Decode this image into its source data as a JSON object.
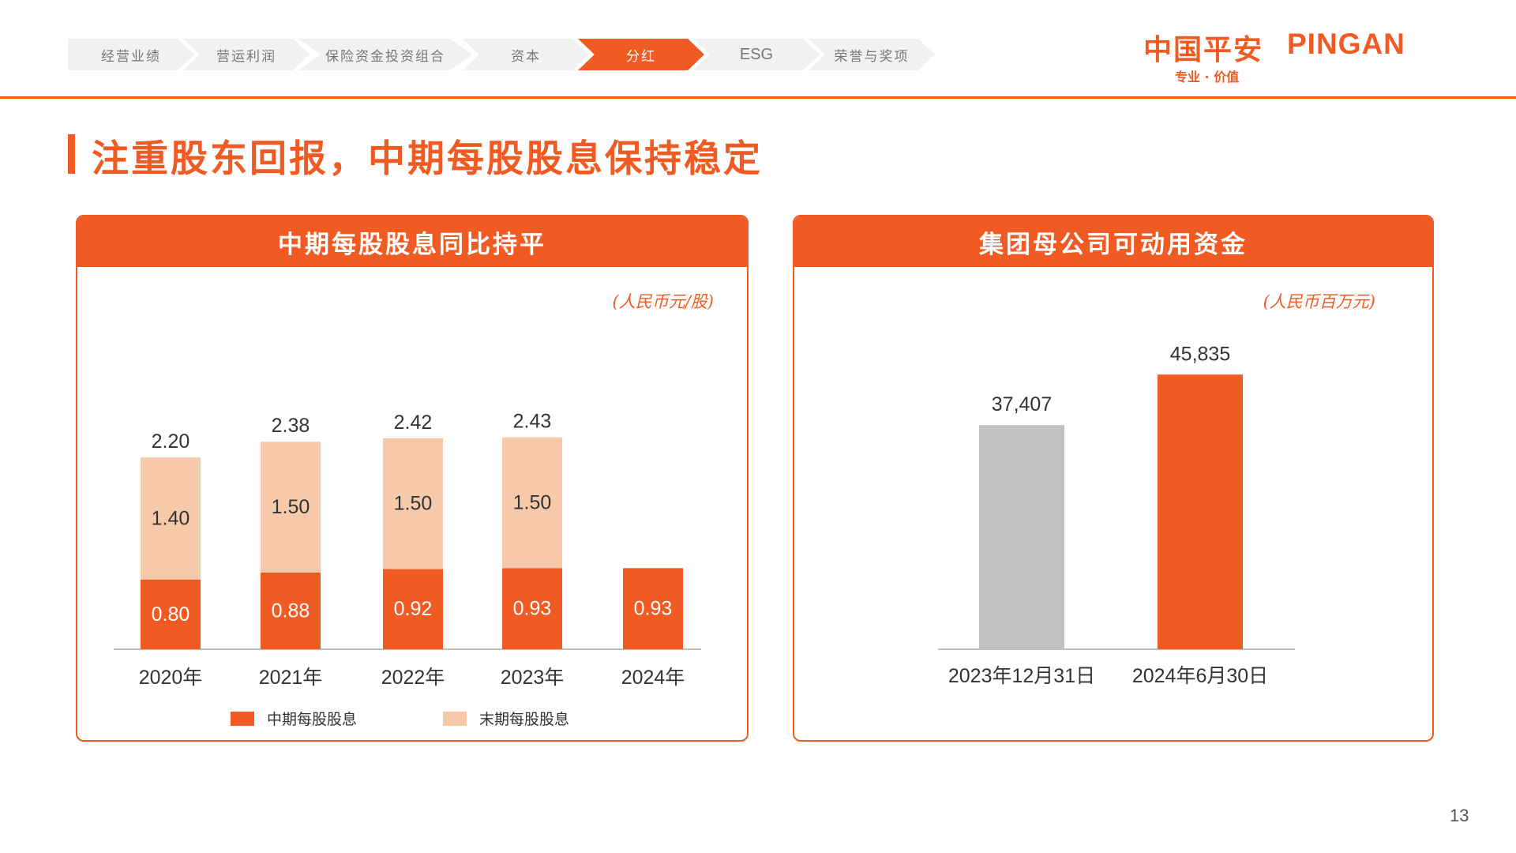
{
  "nav": {
    "items": [
      {
        "label": "经营业绩",
        "active": false
      },
      {
        "label": "营运利润",
        "active": false
      },
      {
        "label": "保险资金投资组合",
        "active": false
      },
      {
        "label": "资本",
        "active": false
      },
      {
        "label": "分红",
        "active": true
      },
      {
        "label": "ESG",
        "active": false
      },
      {
        "label": "荣誉与奖项",
        "active": false
      }
    ]
  },
  "logo": {
    "cn": "中国平安",
    "en": "PINGAN",
    "tagline": "专业 · 价值"
  },
  "page_title": "注重股东回报，中期每股股息保持稳定",
  "page_number": "13",
  "colors": {
    "accent": "#f05a23",
    "light": "#f7c9ab",
    "gray": "#c0c0c0"
  },
  "chart_data": [
    {
      "type": "bar",
      "stacked": true,
      "title": "中期每股股息同比持平",
      "unit": "(人民币元/股)",
      "categories": [
        "2020年",
        "2021年",
        "2022年",
        "2023年",
        "2024年"
      ],
      "series": [
        {
          "name": "中期每股股息",
          "values": [
            0.8,
            0.88,
            0.92,
            0.93,
            0.93
          ],
          "labels": [
            "0.80",
            "0.88",
            "0.92",
            "0.93",
            "0.93"
          ],
          "color": "#f05a23"
        },
        {
          "name": "末期每股股息",
          "values": [
            1.4,
            1.5,
            1.5,
            1.5,
            null
          ],
          "labels": [
            "1.40",
            "1.50",
            "1.50",
            "1.50",
            ""
          ],
          "color": "#f7c9ab"
        }
      ],
      "totals": [
        "2.20",
        "2.38",
        "2.42",
        "2.43",
        ""
      ],
      "totals_values": [
        2.2,
        2.38,
        2.42,
        2.43,
        null
      ],
      "ylim": [
        0,
        2.5
      ],
      "grid": false,
      "legend": "bottom"
    },
    {
      "type": "bar",
      "title": "集团母公司可动用资金",
      "unit": "(人民币百万元)",
      "categories": [
        "2023年12月31日",
        "2024年6月30日"
      ],
      "values": [
        37407,
        45835
      ],
      "labels": [
        "37,407",
        "45,835"
      ],
      "colors": [
        "#c0c0c0",
        "#f05a23"
      ],
      "ylim": [
        0,
        46000
      ],
      "grid": false,
      "legend": "none"
    }
  ]
}
